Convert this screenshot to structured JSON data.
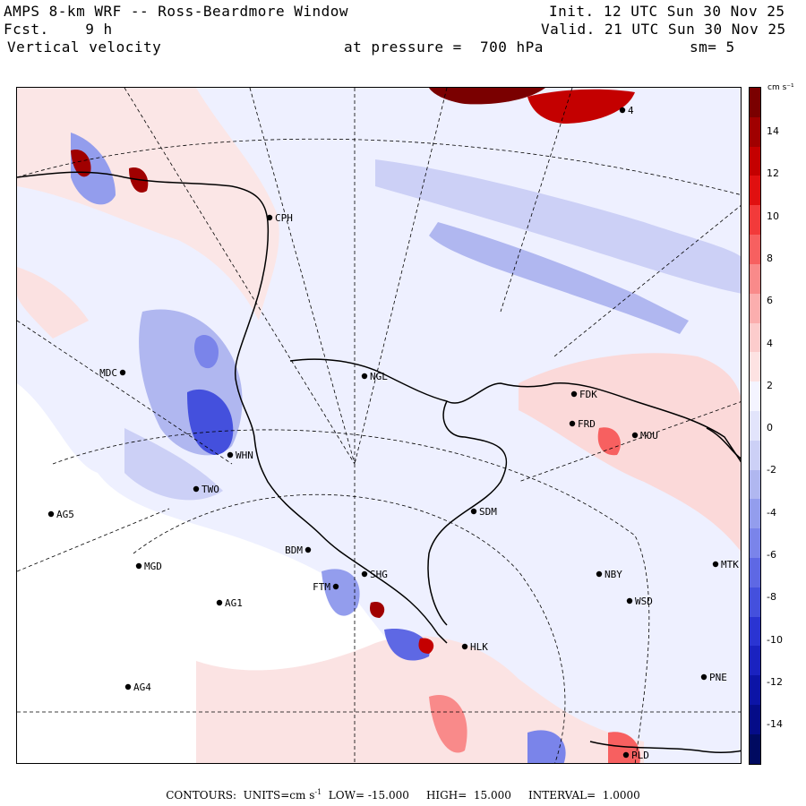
{
  "header": {
    "title": "AMPS 8-km WRF -- Ross-Beardmore Window",
    "init_label": "Init.",
    "init_value": "12 UTC Sun 30 Nov 25",
    "fcst_label": "Fcst.",
    "fcst_value": "9 h",
    "valid_label": "Valid.",
    "valid_value": "21 UTC Sun 30 Nov 25",
    "field_name": "Vertical velocity",
    "pressure_label": "at pressure =",
    "pressure_value": "700 hPa",
    "smoothing": "sm= 5"
  },
  "map": {
    "stations": [
      {
        "id": "CPH"
      },
      {
        "id": "MDC"
      },
      {
        "id": "NGL"
      },
      {
        "id": "FDK"
      },
      {
        "id": "FRD"
      },
      {
        "id": "MOU"
      },
      {
        "id": "WHN"
      },
      {
        "id": "TWO"
      },
      {
        "id": "AG5"
      },
      {
        "id": "SDM"
      },
      {
        "id": "BDM"
      },
      {
        "id": "MGD"
      },
      {
        "id": "FTM"
      },
      {
        "id": "SHG"
      },
      {
        "id": "NBY"
      },
      {
        "id": "MTK"
      },
      {
        "id": "AG1"
      },
      {
        "id": "WSD"
      },
      {
        "id": "HLK"
      },
      {
        "id": "AG4"
      },
      {
        "id": "PNE"
      },
      {
        "id": "PLD"
      },
      {
        "id": "4"
      }
    ]
  },
  "colorbar": {
    "unit": "cm s⁻¹",
    "ticks": [
      "14",
      "12",
      "10",
      "8",
      "6",
      "4",
      "2",
      "0",
      "-2",
      "-4",
      "-6",
      "-8",
      "-10",
      "-12",
      "-14"
    ],
    "colors": [
      "#7a0000",
      "#a00000",
      "#c40000",
      "#e01010",
      "#f23a3a",
      "#f76060",
      "#f98a8a",
      "#fbaeae",
      "#fccccc",
      "#fde2e2",
      "#f4f4ff",
      "#e2e4fb",
      "#ccd0f6",
      "#b0b7f0",
      "#939ded",
      "#7a84ea",
      "#5e68e4",
      "#4450dd",
      "#2a34d2",
      "#1a22c0",
      "#0c14a6",
      "#050c88",
      "#000a60"
    ]
  },
  "footer": {
    "contours_label": "CONTOURS:",
    "units_label": "UNITS=cm s",
    "units_exp": "-1",
    "low_label": "LOW=",
    "low_value": "-15.000",
    "high_label": "HIGH=",
    "high_value": "15.000",
    "interval_label": "INTERVAL=",
    "interval_value": "1.0000"
  }
}
